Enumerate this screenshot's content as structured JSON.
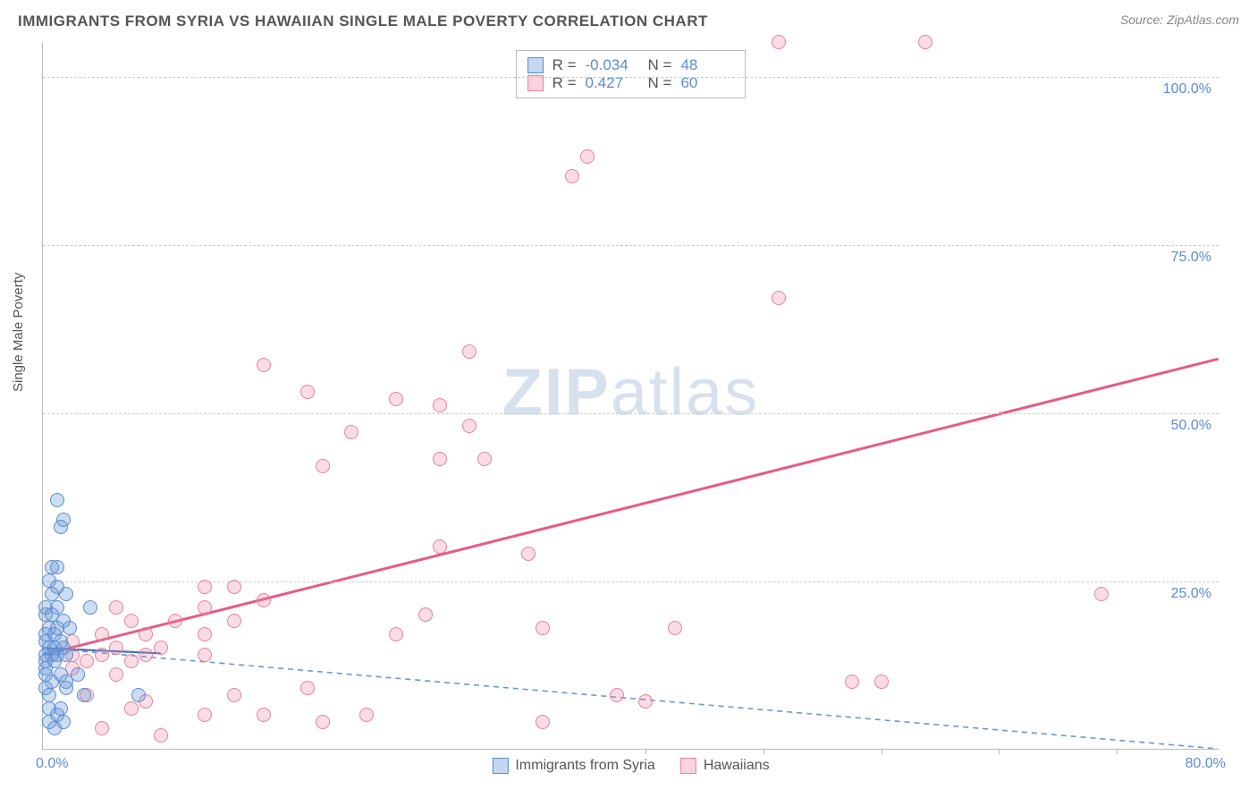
{
  "header": {
    "title": "IMMIGRANTS FROM SYRIA VS HAWAIIAN SINGLE MALE POVERTY CORRELATION CHART",
    "source_prefix": "Source: ",
    "source_name": "ZipAtlas.com"
  },
  "watermark": {
    "zip": "ZIP",
    "atlas": "atlas"
  },
  "chart": {
    "type": "scatter",
    "y_axis_label": "Single Male Poverty",
    "xlim": [
      0,
      80
    ],
    "ylim": [
      0,
      105
    ],
    "x_ticks": [
      {
        "value": 0,
        "label": "0.0%"
      },
      {
        "value": 80,
        "label": "80.0%"
      }
    ],
    "x_tick_marks": [
      41,
      49,
      57,
      65,
      73
    ],
    "y_ticks": [
      {
        "value": 25,
        "label": "25.0%"
      },
      {
        "value": 50,
        "label": "50.0%"
      },
      {
        "value": 75,
        "label": "75.0%"
      },
      {
        "value": 100,
        "label": "100.0%"
      }
    ],
    "background_color": "#ffffff",
    "grid_color": "#cccccc",
    "series": {
      "blue": {
        "label": "Immigrants from Syria",
        "fill_color": "rgba(108,155,216,0.35)",
        "stroke_color": "#5b8bd4",
        "marker_radius": 8,
        "R": "-0.034",
        "N": "48",
        "trend": {
          "x1": 0,
          "y1": 15,
          "x2": 80,
          "y2": 0,
          "color": "#6699d6",
          "width": 1.6,
          "dash": "6,5"
        },
        "trend_solid_segment": {
          "x1": 0,
          "y1": 15,
          "x2": 8,
          "y2": 14.2,
          "color": "#3b6fc0",
          "width": 2.2
        },
        "data": [
          {
            "x": 1.0,
            "y": 37
          },
          {
            "x": 1.4,
            "y": 34
          },
          {
            "x": 1.2,
            "y": 33
          },
          {
            "x": 0.6,
            "y": 27
          },
          {
            "x": 1.0,
            "y": 27
          },
          {
            "x": 0.4,
            "y": 25
          },
          {
            "x": 1.0,
            "y": 24
          },
          {
            "x": 1.6,
            "y": 23
          },
          {
            "x": 0.6,
            "y": 23
          },
          {
            "x": 0.2,
            "y": 21
          },
          {
            "x": 1.0,
            "y": 21
          },
          {
            "x": 3.2,
            "y": 21
          },
          {
            "x": 0.2,
            "y": 20
          },
          {
            "x": 0.6,
            "y": 20
          },
          {
            "x": 1.4,
            "y": 19
          },
          {
            "x": 0.4,
            "y": 18
          },
          {
            "x": 1.0,
            "y": 18
          },
          {
            "x": 1.8,
            "y": 18
          },
          {
            "x": 0.2,
            "y": 17
          },
          {
            "x": 0.8,
            "y": 17
          },
          {
            "x": 1.2,
            "y": 16
          },
          {
            "x": 0.2,
            "y": 16
          },
          {
            "x": 0.4,
            "y": 15
          },
          {
            "x": 0.8,
            "y": 15
          },
          {
            "x": 1.4,
            "y": 15
          },
          {
            "x": 0.2,
            "y": 14
          },
          {
            "x": 0.6,
            "y": 14
          },
          {
            "x": 1.0,
            "y": 14
          },
          {
            "x": 1.6,
            "y": 14
          },
          {
            "x": 0.2,
            "y": 13
          },
          {
            "x": 0.8,
            "y": 13
          },
          {
            "x": 0.2,
            "y": 12
          },
          {
            "x": 0.2,
            "y": 11
          },
          {
            "x": 1.2,
            "y": 11
          },
          {
            "x": 2.4,
            "y": 11
          },
          {
            "x": 0.6,
            "y": 10
          },
          {
            "x": 1.6,
            "y": 10
          },
          {
            "x": 0.2,
            "y": 9
          },
          {
            "x": 1.6,
            "y": 9
          },
          {
            "x": 0.4,
            "y": 8
          },
          {
            "x": 2.8,
            "y": 8
          },
          {
            "x": 6.5,
            "y": 8
          },
          {
            "x": 0.4,
            "y": 6
          },
          {
            "x": 1.2,
            "y": 6
          },
          {
            "x": 1.0,
            "y": 5
          },
          {
            "x": 0.4,
            "y": 4
          },
          {
            "x": 1.4,
            "y": 4
          },
          {
            "x": 0.8,
            "y": 3
          }
        ]
      },
      "pink": {
        "label": "Hawaiians",
        "fill_color": "rgba(238,130,158,0.28)",
        "stroke_color": "#e6829d",
        "marker_radius": 8,
        "R": "0.427",
        "N": "60",
        "trend": {
          "x1": 0,
          "y1": 14,
          "x2": 80,
          "y2": 58,
          "color": "#e85a85",
          "width": 3,
          "dash": null
        },
        "data": [
          {
            "x": 50,
            "y": 105
          },
          {
            "x": 60,
            "y": 105
          },
          {
            "x": 37,
            "y": 88
          },
          {
            "x": 36,
            "y": 85
          },
          {
            "x": 50,
            "y": 67
          },
          {
            "x": 29,
            "y": 59
          },
          {
            "x": 15,
            "y": 57
          },
          {
            "x": 18,
            "y": 53
          },
          {
            "x": 24,
            "y": 52
          },
          {
            "x": 27,
            "y": 51
          },
          {
            "x": 29,
            "y": 48
          },
          {
            "x": 21,
            "y": 47
          },
          {
            "x": 27,
            "y": 43
          },
          {
            "x": 30,
            "y": 43
          },
          {
            "x": 19,
            "y": 42
          },
          {
            "x": 27,
            "y": 30
          },
          {
            "x": 33,
            "y": 29
          },
          {
            "x": 11,
            "y": 24
          },
          {
            "x": 13,
            "y": 24
          },
          {
            "x": 72,
            "y": 23
          },
          {
            "x": 5,
            "y": 21
          },
          {
            "x": 11,
            "y": 21
          },
          {
            "x": 15,
            "y": 22
          },
          {
            "x": 26,
            "y": 20
          },
          {
            "x": 6,
            "y": 19
          },
          {
            "x": 9,
            "y": 19
          },
          {
            "x": 13,
            "y": 19
          },
          {
            "x": 34,
            "y": 18
          },
          {
            "x": 43,
            "y": 18
          },
          {
            "x": 4,
            "y": 17
          },
          {
            "x": 7,
            "y": 17
          },
          {
            "x": 11,
            "y": 17
          },
          {
            "x": 24,
            "y": 17
          },
          {
            "x": 2,
            "y": 16
          },
          {
            "x": 5,
            "y": 15
          },
          {
            "x": 8,
            "y": 15
          },
          {
            "x": 2,
            "y": 14
          },
          {
            "x": 4,
            "y": 14
          },
          {
            "x": 7,
            "y": 14
          },
          {
            "x": 11,
            "y": 14
          },
          {
            "x": 3,
            "y": 13
          },
          {
            "x": 6,
            "y": 13
          },
          {
            "x": 2,
            "y": 12
          },
          {
            "x": 5,
            "y": 11
          },
          {
            "x": 57,
            "y": 10
          },
          {
            "x": 55,
            "y": 10
          },
          {
            "x": 18,
            "y": 9
          },
          {
            "x": 13,
            "y": 8
          },
          {
            "x": 39,
            "y": 8
          },
          {
            "x": 3,
            "y": 8
          },
          {
            "x": 7,
            "y": 7
          },
          {
            "x": 41,
            "y": 7
          },
          {
            "x": 6,
            "y": 6
          },
          {
            "x": 22,
            "y": 5
          },
          {
            "x": 11,
            "y": 5
          },
          {
            "x": 15,
            "y": 5
          },
          {
            "x": 19,
            "y": 4
          },
          {
            "x": 34,
            "y": 4
          },
          {
            "x": 4,
            "y": 3
          },
          {
            "x": 8,
            "y": 2
          }
        ]
      }
    },
    "stats_legend_labels": {
      "R": "R = ",
      "N": "N = "
    }
  }
}
